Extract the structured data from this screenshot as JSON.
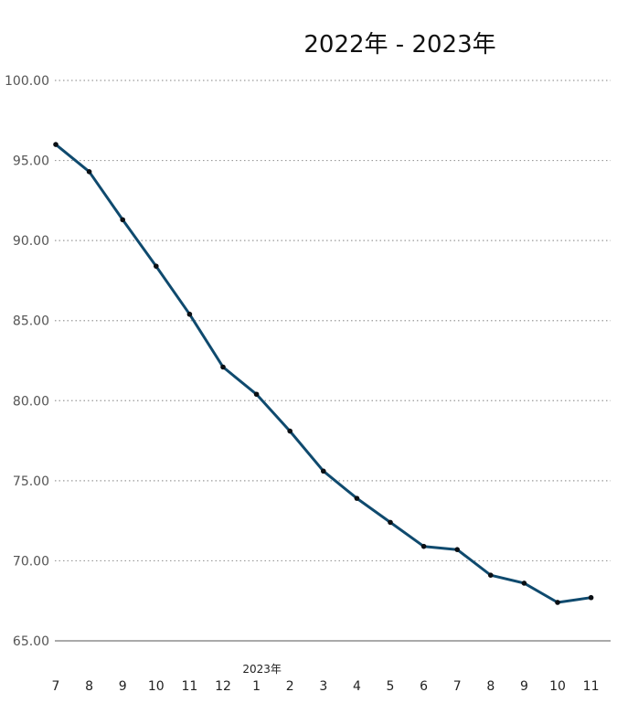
{
  "chart_data": {
    "type": "line",
    "title": "2022年 - 2023年",
    "year_label": "2023年",
    "x": [
      "2022-07",
      "2022-08",
      "2022-09",
      "2022-10",
      "2022-11",
      "2022-12",
      "2023-01",
      "2023-02",
      "2023-03",
      "2023-04",
      "2023-05",
      "2023-06",
      "2023-07",
      "2023-08",
      "2023-09",
      "2023-10",
      "2023-11"
    ],
    "tick_labels": [
      "7",
      "8",
      "9",
      "10",
      "11",
      "12",
      "1",
      "2",
      "3",
      "4",
      "5",
      "6",
      "7",
      "8",
      "9",
      "10",
      "11"
    ],
    "values": [
      96.0,
      94.3,
      91.3,
      88.4,
      85.4,
      82.1,
      80.4,
      78.1,
      75.6,
      73.9,
      72.4,
      70.9,
      70.7,
      69.1,
      68.6,
      67.4,
      67.7
    ],
    "ylim": [
      65,
      100
    ],
    "yticks": [
      "65.00",
      "70.00",
      "75.00",
      "80.00",
      "85.00",
      "90.00",
      "95.00",
      "100.00"
    ],
    "grid": true,
    "line_color": "#0f4a6e",
    "marker_color": "#0a0f14",
    "grid_color": "#9a9a9a",
    "xlabel": "",
    "ylabel": ""
  }
}
